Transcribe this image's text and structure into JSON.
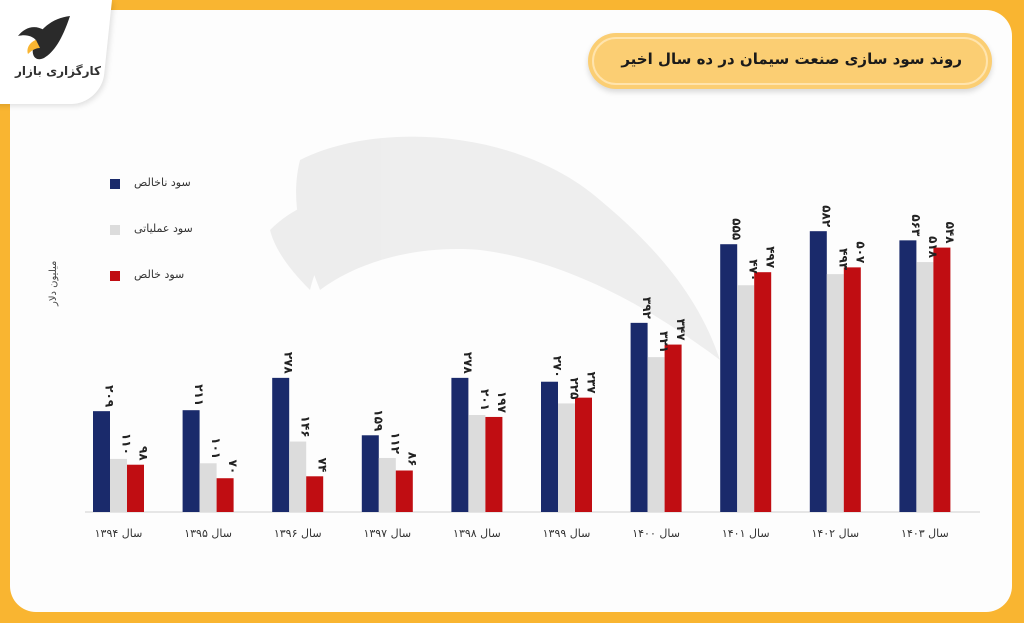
{
  "brand": {
    "logo_text": "کارگزاری بازار"
  },
  "title": "روند سود سازی صنعت سیمان در ده سال اخیر",
  "colors": {
    "background": "#f9b531",
    "series_1": "#1a2a6b",
    "series_2": "#dcdcdc",
    "series_3": "#c00d12"
  },
  "chart_data": {
    "type": "bar",
    "title": "روند سود سازی صنعت سیمان در ده سال اخیر",
    "ylabel": "میلیون دلار",
    "xlabel": "",
    "categories": [
      "سال ۱۳۹۴",
      "سال ۱۳۹۵",
      "سال ۱۳۹۶",
      "سال ۱۳۹۷",
      "سال ۱۳۹۸",
      "سال ۱۳۹۹",
      "سال ۱۴۰۰",
      "سال ۱۴۰۱",
      "سال ۱۴۰۲",
      "سال ۱۴۰۳"
    ],
    "series": [
      {
        "name": "سود ناخالص",
        "values": [
          209,
          211,
          278,
          159,
          278,
          270,
          392,
          555,
          582,
          563
        ],
        "labels": [
          "۲۰۹",
          "۲۱۱",
          "۲۷۸",
          "۱۵۹",
          "۲۷۸",
          "۲۷۰",
          "۳۹۲",
          "۵۵۵",
          "۵۸۲",
          "۵۶۳"
        ]
      },
      {
        "name": "سود عملیاتی",
        "values": [
          110,
          101,
          146,
          112,
          201,
          225,
          321,
          470,
          493,
          518
        ],
        "labels": [
          "۱۱۰",
          "۱۰۱",
          "۱۴۶",
          "۱۱۲",
          "۲۰۱",
          "۲۲۵",
          "۳۲۱",
          "۴۷۰",
          "۴۹۳",
          "۵۱۸"
        ]
      },
      {
        "name": "سود خالص",
        "values": [
          98,
          70,
          74,
          86,
          197,
          237,
          347,
          497,
          507,
          548
        ],
        "labels": [
          "۹۸",
          "۷۰",
          "۷۴",
          "۸۶",
          "۱۹۷",
          "۲۳۷",
          "۳۴۷",
          "۴۹۷",
          "۵۰۷",
          "۵۴۸"
        ]
      }
    ],
    "ylim": [
      0,
      700
    ],
    "grid": false,
    "legend_position": "left"
  }
}
